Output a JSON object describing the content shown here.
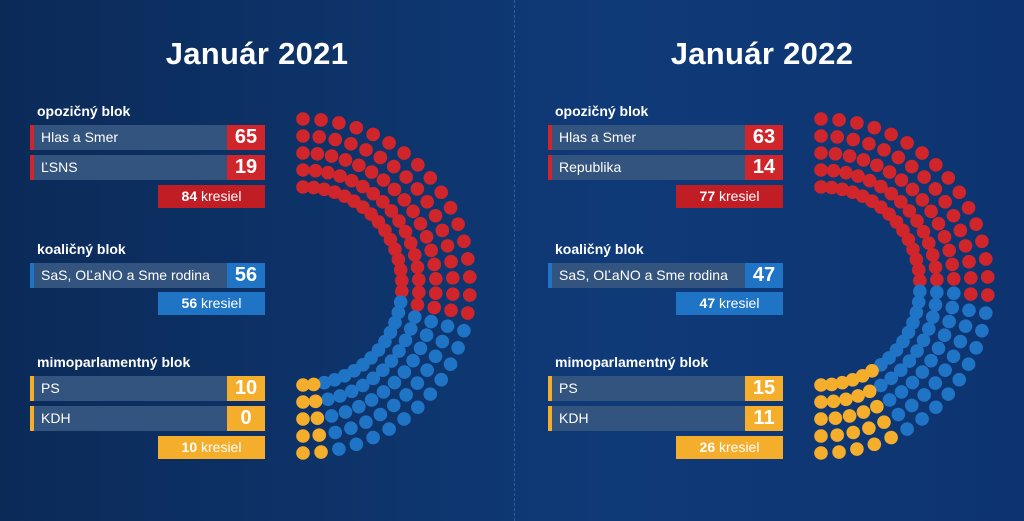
{
  "colors": {
    "opposition": "#d0262b",
    "coalition": "#1f74c6",
    "extra": "#f5ad2c"
  },
  "chart_data": [
    {
      "type": "hemicycle",
      "title": "Január 2021",
      "total_seats": 150,
      "blocks": [
        {
          "name": "opozičný blok",
          "color_key": "opposition",
          "total": 84,
          "total_label": "kresiel",
          "parties": [
            {
              "name": "Hlas a Smer",
              "seats": 65
            },
            {
              "name": "ĽSNS",
              "seats": 19
            }
          ]
        },
        {
          "name": "koaličný blok",
          "color_key": "coalition",
          "total": 56,
          "total_label": "kresiel",
          "parties": [
            {
              "name": "SaS, OĽaNO a Sme rodina",
              "seats": 56
            }
          ]
        },
        {
          "name": "mimoparlamentný blok",
          "color_key": "extra",
          "total": 10,
          "total_label": "kresiel",
          "parties": [
            {
              "name": "PS",
              "seats": 10
            },
            {
              "name": "KDH",
              "seats": 0
            }
          ]
        }
      ]
    },
    {
      "type": "hemicycle",
      "title": "Január 2022",
      "total_seats": 150,
      "blocks": [
        {
          "name": "opozičný blok",
          "color_key": "opposition",
          "total": 77,
          "total_label": "kresiel",
          "parties": [
            {
              "name": "Hlas a Smer",
              "seats": 63
            },
            {
              "name": "Republika",
              "seats": 14
            }
          ]
        },
        {
          "name": "koaličný blok",
          "color_key": "coalition",
          "total": 47,
          "total_label": "kresiel",
          "parties": [
            {
              "name": "SaS, OĽaNO a Sme rodina",
              "seats": 47
            }
          ]
        },
        {
          "name": "mimoparlamentný blok",
          "color_key": "extra",
          "total": 26,
          "total_label": "kresiel",
          "parties": [
            {
              "name": "PS",
              "seats": 15
            },
            {
              "name": "KDH",
              "seats": 11
            }
          ]
        }
      ]
    }
  ]
}
